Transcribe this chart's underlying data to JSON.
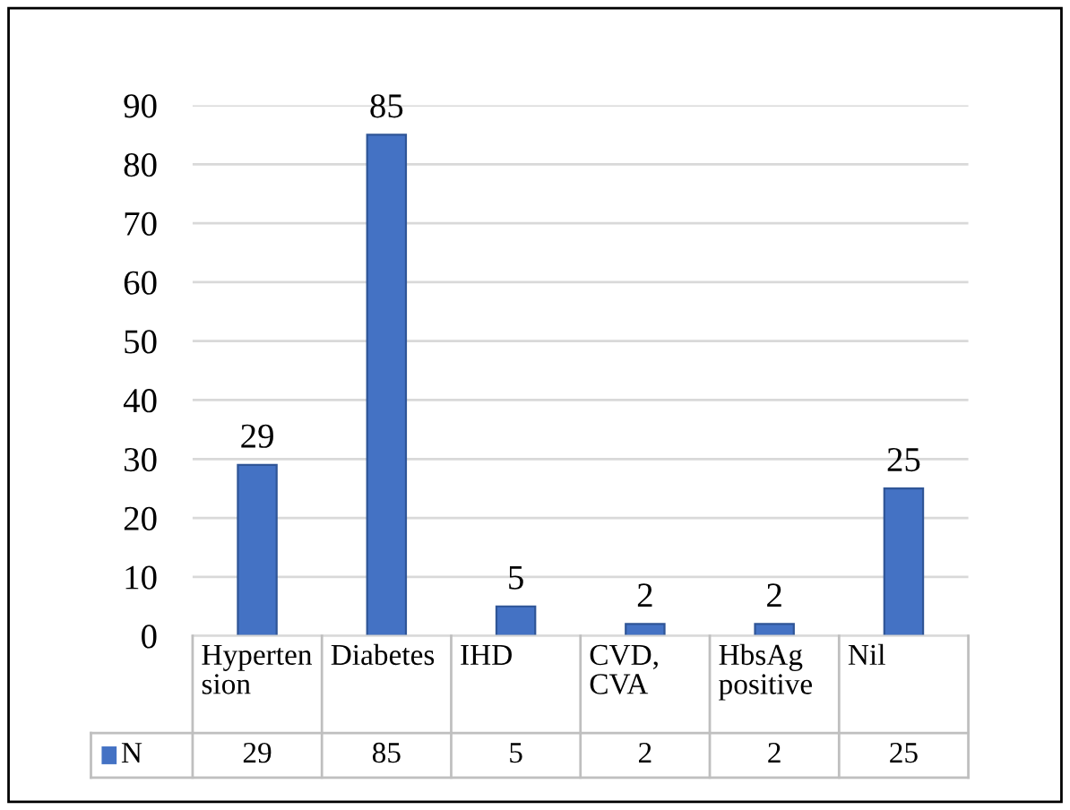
{
  "chart_data": {
    "type": "bar",
    "categories": [
      "Hypertension",
      "Diabetes",
      "IHD",
      "CVD, CVA",
      "HbsAg positive",
      "Nil"
    ],
    "series": [
      {
        "name": "N",
        "color": "#4472c4",
        "values": [
          29,
          85,
          5,
          2,
          2,
          25
        ],
        "value_labels": [
          "29",
          "85",
          "5",
          "2",
          "2",
          "25"
        ]
      }
    ],
    "ylim": [
      0,
      90
    ],
    "yticks": [
      0,
      10,
      20,
      30,
      40,
      50,
      60,
      70,
      80,
      90
    ],
    "grid": "y",
    "annotations": [
      "29",
      "85",
      "5",
      "2",
      "2",
      "25"
    ]
  }
}
